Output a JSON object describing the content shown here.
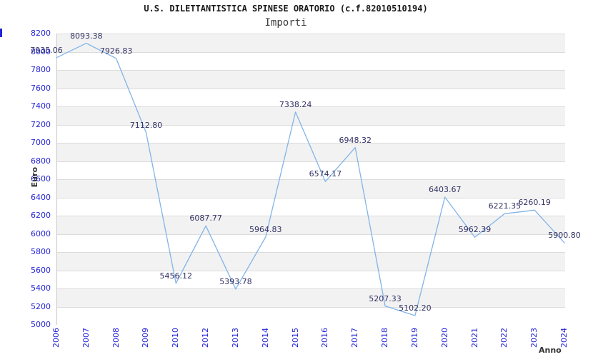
{
  "header": {
    "title": "U.S. DILETTANTISTICA SPINESE ORATORIO (c.f.82010510194)",
    "subtitle": "Importi"
  },
  "axes": {
    "y_label": "Euro",
    "x_label": "Anno"
  },
  "colors": {
    "tick_label_text": "#2424d8",
    "point_label_text": "#333366",
    "series_line": "#82b4e8",
    "band_shade": "#f2f2f2",
    "gridline": "#dcdcdc",
    "plot_border": "#c9c9c9",
    "title_text": "#1a1a1a",
    "subtitle_text": "#3c3c3c",
    "axis_title_text": "#333333",
    "background": "#ffffff"
  },
  "chart_data": {
    "type": "line",
    "title": "U.S. DILETTANTISTICA SPINESE ORATORIO (c.f.82010510194)",
    "subtitle": "Importi",
    "xlabel": "Anno",
    "ylabel": "Euro",
    "legend_position": "none",
    "grid": "horizontal bands every 200, alternating shaded fill",
    "categories": [
      "2006",
      "2007",
      "2008",
      "2009",
      "2010",
      "2012",
      "2013",
      "2014",
      "2015",
      "2016",
      "2017",
      "2018",
      "2019",
      "2020",
      "2021",
      "2022",
      "2023",
      "2024"
    ],
    "values": [
      7935.06,
      8093.38,
      7926.83,
      7112.8,
      5456.12,
      6087.77,
      5393.78,
      5964.83,
      7338.24,
      6574.17,
      6948.32,
      5207.33,
      5102.2,
      6403.67,
      5962.39,
      6221.35,
      6260.19,
      5900.8
    ],
    "point_labels": [
      "7935.06",
      "8093.38",
      "7926.83",
      "7112.80",
      "5456.12",
      "6087.77",
      "5393.78",
      "5964.83",
      "7338.24",
      "6574.17",
      "6948.32",
      "5207.33",
      "5102.20",
      "6403.67",
      "5962.39",
      "6221.35",
      "6260.19",
      "5900.80"
    ],
    "series": [
      {
        "name": "Importi",
        "values": [
          7935.06,
          8093.38,
          7926.83,
          7112.8,
          5456.12,
          6087.77,
          5393.78,
          5964.83,
          7338.24,
          6574.17,
          6948.32,
          5207.33,
          5102.2,
          6403.67,
          5962.39,
          6221.35,
          6260.19,
          5900.8
        ]
      }
    ],
    "ylim": [
      5000,
      8200
    ],
    "ytick_step": 200,
    "yticks": [
      8200,
      8000,
      7800,
      7600,
      7400,
      7200,
      7000,
      6800,
      6600,
      6400,
      6200,
      6000,
      5800,
      5600,
      5400,
      5200,
      5000
    ]
  }
}
